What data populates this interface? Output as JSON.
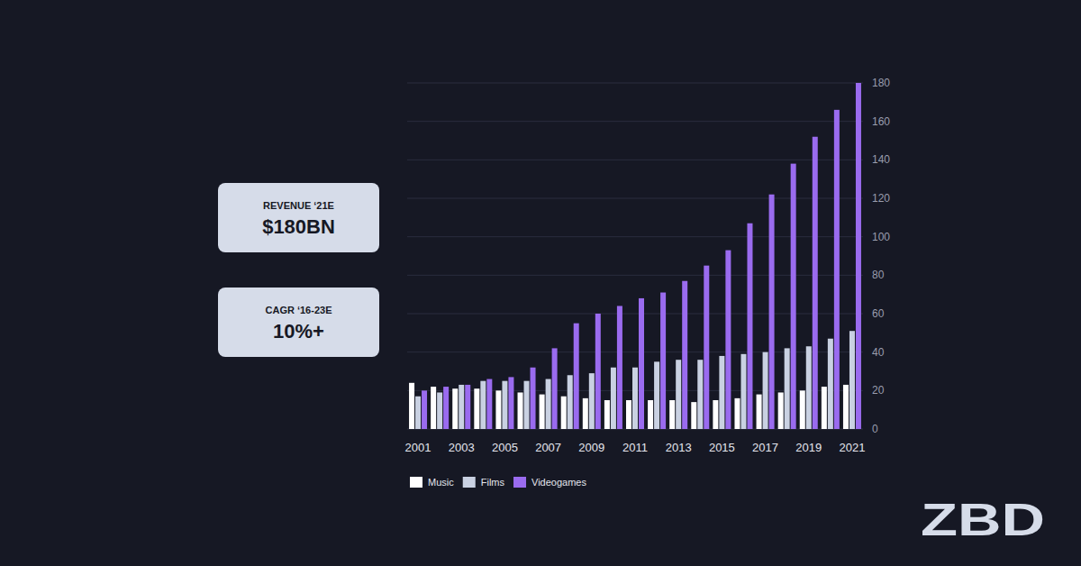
{
  "chart_data": {
    "type": "bar",
    "categories": [
      "2001",
      null,
      "2003",
      null,
      "2005",
      null,
      "2007",
      null,
      "2009",
      null,
      "2011",
      null,
      "2013",
      null,
      "2015",
      null,
      "2017",
      null,
      "2019",
      null,
      "2021"
    ],
    "series": [
      {
        "name": "Music",
        "color": "#ffffff",
        "values": [
          24,
          22,
          21,
          21,
          20,
          19,
          18,
          17,
          16,
          15,
          15,
          15,
          15,
          14,
          15,
          16,
          18,
          19,
          20,
          22,
          23
        ]
      },
      {
        "name": "Films",
        "color": "#c9d1e2",
        "values": [
          17,
          19,
          23,
          25,
          25,
          25,
          26,
          28,
          29,
          32,
          32,
          35,
          36,
          36,
          38,
          39,
          40,
          42,
          43,
          47,
          51
        ]
      },
      {
        "name": "Videogames",
        "color": "#9a6bef",
        "values": [
          20,
          22,
          23,
          26,
          27,
          32,
          42,
          55,
          60,
          64,
          68,
          71,
          77,
          85,
          93,
          107,
          122,
          138,
          152,
          166,
          180
        ]
      }
    ],
    "ylim": [
      0,
      180
    ],
    "yticks": [
      0,
      20,
      40,
      60,
      80,
      100,
      120,
      140,
      160,
      180
    ],
    "grid": true,
    "legend": "bottom",
    "annotations": [
      {
        "label": "REVENUE ‘21E",
        "text": "$180BN"
      },
      {
        "label": "CAGR ‘16-23E",
        "text": "10%+"
      }
    ]
  },
  "logo": "ZBD"
}
